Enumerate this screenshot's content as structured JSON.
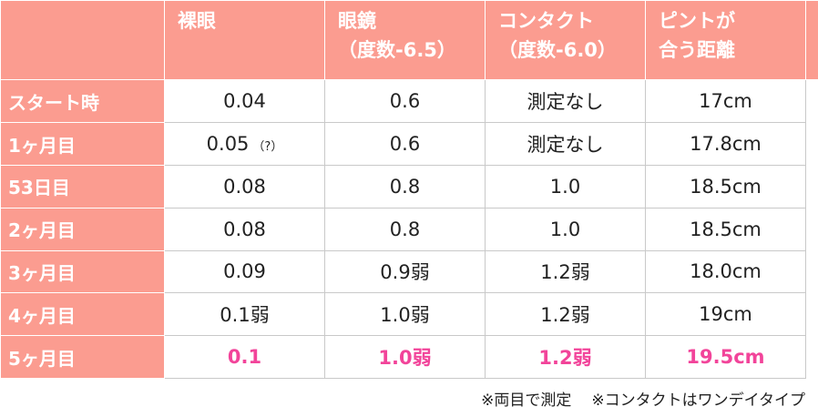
{
  "table": {
    "headers": [
      {
        "line1": "",
        "line2": ""
      },
      {
        "line1": "裸眼",
        "line2": ""
      },
      {
        "line1": "眼鏡",
        "line2": "（度数-6.5）"
      },
      {
        "line1": "コンタクト",
        "line2": "（度数-6.0）"
      },
      {
        "line1": "ピントが",
        "line2": "合う距離"
      }
    ],
    "rows": [
      {
        "label": "スタート時",
        "naked": "0.04",
        "naked_note": "",
        "glasses": "0.6",
        "contact": "測定なし",
        "focus": "17cm"
      },
      {
        "label": "1ヶ月目",
        "naked": "0.05",
        "naked_note": "（?）",
        "glasses": "0.6",
        "contact": "測定なし",
        "focus": "17.8cm"
      },
      {
        "label": "53日目",
        "naked": "0.08",
        "naked_note": "",
        "glasses": "0.8",
        "contact": "1.0",
        "focus": "18.5cm"
      },
      {
        "label": "2ヶ月目",
        "naked": "0.08",
        "naked_note": "",
        "glasses": "0.8",
        "contact": "1.0",
        "focus": "18.5cm"
      },
      {
        "label": "3ヶ月目",
        "naked": "0.09",
        "naked_note": "",
        "glasses": "0.9弱",
        "contact": "1.2弱",
        "focus": "18.0cm"
      },
      {
        "label": "4ヶ月目",
        "naked": "0.1弱",
        "naked_note": "",
        "glasses": "1.0弱",
        "contact": "1.2弱",
        "focus": "19cm"
      },
      {
        "label": "5ヶ月目",
        "naked": "0.1",
        "naked_note": "",
        "glasses": "1.0弱",
        "contact": "1.2弱",
        "focus": "19.5cm"
      }
    ]
  },
  "footnotes": {
    "note1": "※両目で測定",
    "note2": "※コンタクトはワンデイタイプ"
  },
  "colors": {
    "header_bg": "#fb9c90",
    "highlight_text": "#f2449a"
  }
}
